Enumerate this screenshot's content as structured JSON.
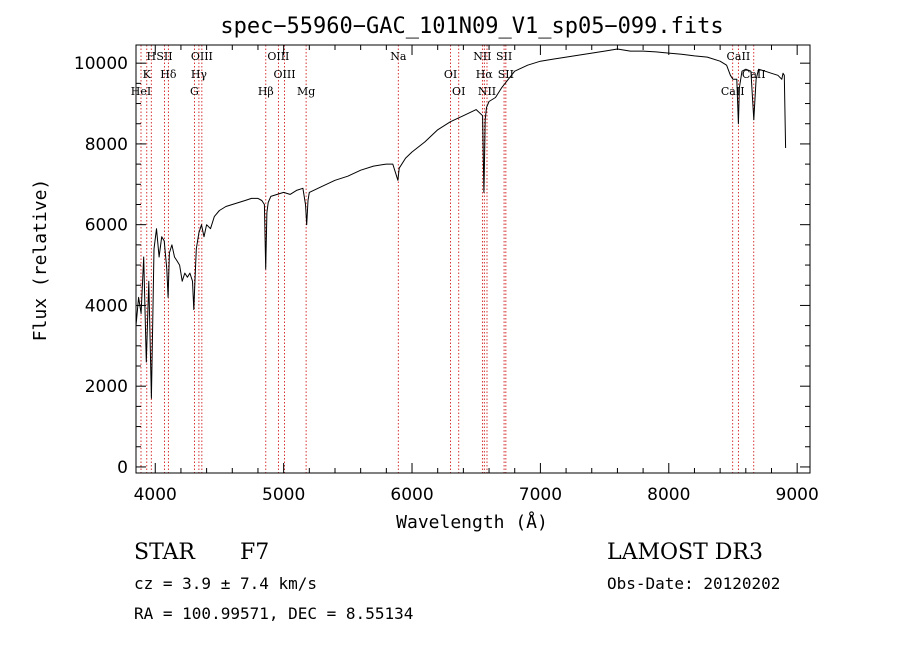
{
  "chart_data": {
    "type": "line",
    "title": "spec−55960−GAC_101N09_V1_sp05−099.fits",
    "xlabel": "Wavelength (Å)",
    "ylabel": "Flux (relative)",
    "xlim": [
      3850,
      9100
    ],
    "ylim": [
      -150,
      10450
    ],
    "x_ticks": [
      4000,
      5000,
      6000,
      7000,
      8000,
      9000
    ],
    "y_ticks": [
      0,
      2000,
      4000,
      6000,
      8000,
      10000
    ],
    "grid": false,
    "series": [
      {
        "x": [
          3850,
          3870,
          3890,
          3910,
          3930,
          3950,
          3970,
          3990,
          4010,
          4030,
          4050,
          4070,
          4090,
          4100,
          4110,
          4130,
          4150,
          4170,
          4190,
          4210,
          4230,
          4250,
          4270,
          4290,
          4300,
          4310,
          4320,
          4340,
          4360,
          4380,
          4400,
          4430,
          4460,
          4500,
          4550,
          4600,
          4650,
          4700,
          4750,
          4800,
          4830,
          4850,
          4860,
          4870,
          4880,
          4900,
          4950,
          5000,
          5050,
          5100,
          5150,
          5170,
          5180,
          5190,
          5200,
          5300,
          5400,
          5500,
          5600,
          5700,
          5800,
          5850,
          5890,
          5900,
          5950,
          6000,
          6100,
          6200,
          6300,
          6400,
          6500,
          6550,
          6560,
          6563,
          6570,
          6580,
          6600,
          6650,
          6700,
          6750,
          6800,
          6900,
          7000,
          7100,
          7200,
          7300,
          7400,
          7500,
          7600,
          7700,
          7800,
          7900,
          8000,
          8100,
          8200,
          8300,
          8400,
          8450,
          8480,
          8500,
          8530,
          8542,
          8550,
          8570,
          8600,
          8640,
          8662,
          8680,
          8700,
          8750,
          8800,
          8850,
          8880,
          8890,
          8900,
          8910
        ],
        "y": [
          3500,
          4200,
          3800,
          5200,
          2600,
          4600,
          1700,
          5400,
          5900,
          5200,
          5700,
          5600,
          4900,
          4200,
          5300,
          5500,
          5200,
          5100,
          5000,
          4600,
          4800,
          4700,
          4800,
          4600,
          3900,
          4700,
          5400,
          5800,
          6000,
          5700,
          6000,
          5900,
          6200,
          6350,
          6450,
          6500,
          6550,
          6600,
          6650,
          6650,
          6600,
          6500,
          4900,
          6300,
          6550,
          6700,
          6750,
          6800,
          6750,
          6850,
          6900,
          6500,
          6000,
          6600,
          6800,
          6950,
          7100,
          7200,
          7350,
          7450,
          7500,
          7500,
          7100,
          7400,
          7650,
          7800,
          8050,
          8350,
          8550,
          8700,
          8850,
          8700,
          6800,
          7300,
          8600,
          8900,
          9050,
          9150,
          9400,
          9600,
          9800,
          9950,
          10050,
          10100,
          10150,
          10200,
          10250,
          10300,
          10350,
          10300,
          10300,
          10280,
          10250,
          10220,
          10180,
          10150,
          10050,
          9950,
          9700,
          9600,
          9600,
          8500,
          9400,
          9800,
          9850,
          9800,
          8600,
          9600,
          9850,
          9800,
          9750,
          9700,
          9600,
          9750,
          9700,
          7900
        ]
      }
    ],
    "spectral_lines": [
      {
        "name": "H",
        "wavelength": 3969
      },
      {
        "name": "K",
        "wavelength": 3934
      },
      {
        "name": "HeI",
        "wavelength": 3889
      },
      {
        "name": "SII",
        "wavelength": 4072
      },
      {
        "name": "Hδ",
        "wavelength": 4102
      },
      {
        "name": "G",
        "wavelength": 4305
      },
      {
        "name": "OIII",
        "wavelength": 4363
      },
      {
        "name": "Hγ",
        "wavelength": 4340
      },
      {
        "name": "Hβ",
        "wavelength": 4861
      },
      {
        "name": "OIII",
        "wavelength": 4959
      },
      {
        "name": "OIII",
        "wavelength": 5007
      },
      {
        "name": "Mg",
        "wavelength": 5175
      },
      {
        "name": "Na",
        "wavelength": 5893
      },
      {
        "name": "OI",
        "wavelength": 6300
      },
      {
        "name": "OI",
        "wavelength": 6364
      },
      {
        "name": "NII",
        "wavelength": 6548
      },
      {
        "name": "Hα",
        "wavelength": 6563
      },
      {
        "name": "NII",
        "wavelength": 6584
      },
      {
        "name": "SII",
        "wavelength": 6717
      },
      {
        "name": "SII",
        "wavelength": 6731
      },
      {
        "name": "CaII",
        "wavelength": 8498
      },
      {
        "name": "CaII",
        "wavelength": 8542
      },
      {
        "name": "CaII",
        "wavelength": 8662
      }
    ],
    "colors": {
      "spectrum": "#000000",
      "line_markers": "#cc0000",
      "axes": "#000000"
    }
  },
  "info": {
    "class": "STAR",
    "subclass": "F7",
    "survey": "LAMOST DR3",
    "cz": "cz = 3.9 ± 7.4 km/s",
    "obs_date": "Obs-Date: 20120202",
    "coords": "RA = 100.99571, DEC =    8.55134"
  }
}
